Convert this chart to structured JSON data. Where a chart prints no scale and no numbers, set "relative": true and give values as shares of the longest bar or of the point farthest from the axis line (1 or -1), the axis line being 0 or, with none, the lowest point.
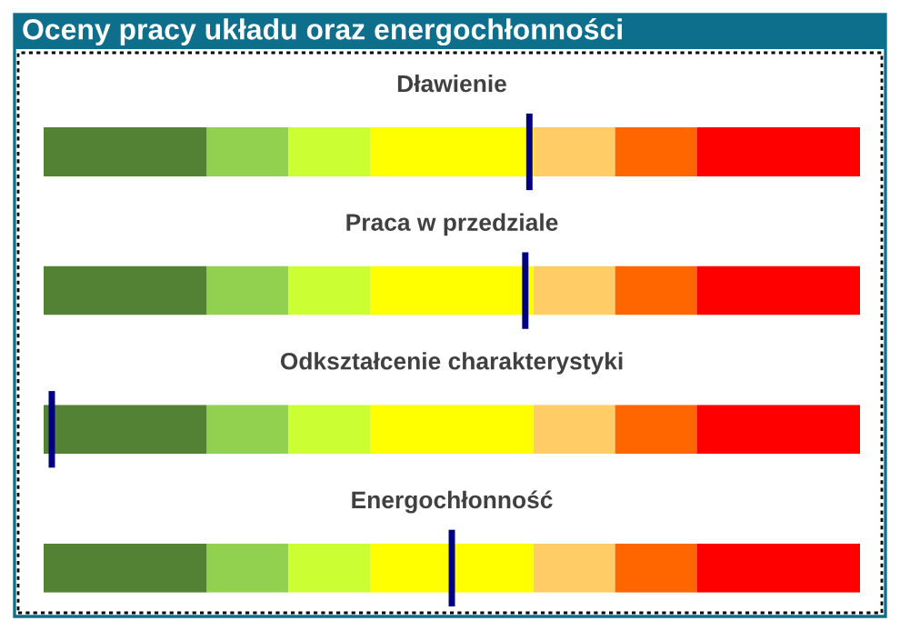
{
  "chart_data": [
    {
      "type": "other",
      "title": "Oceny pracy układu oraz energochłonności"
    },
    {
      "type": "bar",
      "title": "Dławienie",
      "orientation": "horizontal",
      "stacked": true,
      "relative": true,
      "categories": [
        null
      ],
      "series": [
        {
          "color": "#548235",
          "values": [
            0.2
          ]
        },
        {
          "color": "#92d050",
          "values": [
            0.1
          ]
        },
        {
          "color": "#ccff33",
          "values": [
            0.1
          ]
        },
        {
          "color": "#ffff00",
          "values": [
            0.2
          ]
        },
        {
          "color": "#ffcc66",
          "values": [
            0.1
          ]
        },
        {
          "color": "#ff6600",
          "values": [
            0.1
          ]
        },
        {
          "color": "#ff0000",
          "values": [
            0.2
          ]
        }
      ],
      "ref_lines": [
        {
          "axis": "x",
          "value": 0.595,
          "color": "#000080"
        }
      ]
    },
    {
      "type": "bar",
      "title": "Praca w przedziale",
      "orientation": "horizontal",
      "stacked": true,
      "relative": true,
      "categories": [
        null
      ],
      "series": [
        {
          "color": "#548235",
          "values": [
            0.2
          ]
        },
        {
          "color": "#92d050",
          "values": [
            0.1
          ]
        },
        {
          "color": "#ccff33",
          "values": [
            0.1
          ]
        },
        {
          "color": "#ffff00",
          "values": [
            0.2
          ]
        },
        {
          "color": "#ffcc66",
          "values": [
            0.1
          ]
        },
        {
          "color": "#ff6600",
          "values": [
            0.1
          ]
        },
        {
          "color": "#ff0000",
          "values": [
            0.2
          ]
        }
      ],
      "ref_lines": [
        {
          "axis": "x",
          "value": 0.59,
          "color": "#000080"
        }
      ]
    },
    {
      "type": "bar",
      "title": "Odkształcenie charakterystyki",
      "orientation": "horizontal",
      "stacked": true,
      "relative": true,
      "categories": [
        null
      ],
      "series": [
        {
          "color": "#548235",
          "values": [
            0.2
          ]
        },
        {
          "color": "#92d050",
          "values": [
            0.1
          ]
        },
        {
          "color": "#ccff33",
          "values": [
            0.1
          ]
        },
        {
          "color": "#ffff00",
          "values": [
            0.2
          ]
        },
        {
          "color": "#ffcc66",
          "values": [
            0.1
          ]
        },
        {
          "color": "#ff6600",
          "values": [
            0.1
          ]
        },
        {
          "color": "#ff0000",
          "values": [
            0.2
          ]
        }
      ],
      "ref_lines": [
        {
          "axis": "x",
          "value": 0.01,
          "color": "#000080"
        }
      ]
    },
    {
      "type": "bar",
      "title": "Energochłonność",
      "orientation": "horizontal",
      "stacked": true,
      "relative": true,
      "categories": [
        null
      ],
      "series": [
        {
          "color": "#548235",
          "values": [
            0.2
          ]
        },
        {
          "color": "#92d050",
          "values": [
            0.1
          ]
        },
        {
          "color": "#ccff33",
          "values": [
            0.1
          ]
        },
        {
          "color": "#ffff00",
          "values": [
            0.2
          ]
        },
        {
          "color": "#ffcc66",
          "values": [
            0.1
          ]
        },
        {
          "color": "#ff6600",
          "values": [
            0.1
          ]
        },
        {
          "color": "#ff0000",
          "values": [
            0.2
          ]
        }
      ],
      "ref_lines": [
        {
          "axis": "x",
          "value": 0.5,
          "color": "#000080"
        }
      ]
    }
  ]
}
